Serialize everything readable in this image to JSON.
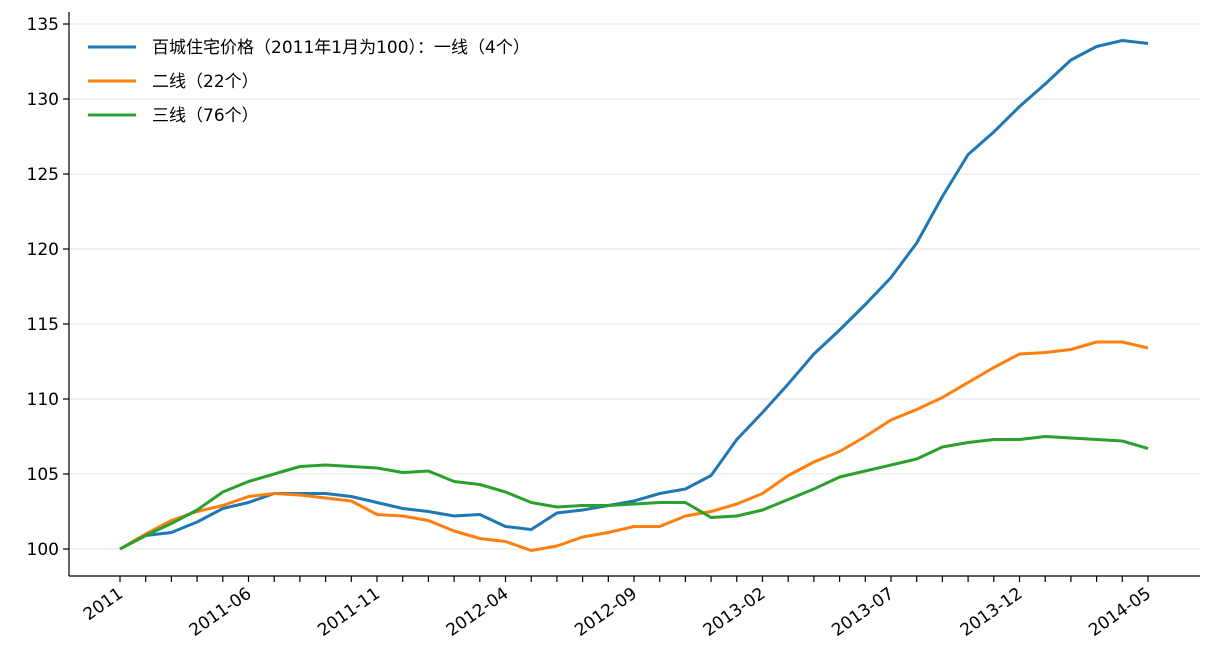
{
  "chart_data": {
    "type": "line",
    "categories": [
      "2011",
      null,
      null,
      null,
      null,
      "2011-06",
      null,
      null,
      null,
      null,
      "2011-11",
      null,
      null,
      null,
      null,
      "2012-04",
      null,
      null,
      null,
      null,
      "2012-09",
      null,
      null,
      null,
      null,
      "2013-02",
      null,
      null,
      null,
      null,
      "2013-07",
      null,
      null,
      null,
      null,
      "2013-12",
      null,
      null,
      null,
      null,
      "2014-05"
    ],
    "series": [
      {
        "name": "百城住宅价格（2011年1月为100）：一线（4个）",
        "color": "#1f77b4",
        "values": [
          100,
          100.9,
          101.1,
          101.8,
          102.7,
          103.1,
          103.7,
          103.7,
          103.7,
          103.5,
          103.1,
          102.7,
          102.5,
          102.2,
          102.3,
          101.5,
          101.3,
          102.4,
          102.6,
          102.9,
          103.2,
          103.7,
          104,
          104.9,
          107.3,
          109.1,
          111,
          113,
          114.6,
          116.3,
          118.1,
          120.4,
          123.5,
          126.3,
          127.8,
          129.5,
          131,
          132.6,
          133.5,
          133.9,
          133.7
        ]
      },
      {
        "name": "二线（22个）",
        "color": "#ff7f0e",
        "values": [
          100,
          101,
          101.9,
          102.5,
          102.9,
          103.5,
          103.7,
          103.6,
          103.4,
          103.2,
          102.3,
          102.2,
          101.9,
          101.2,
          100.7,
          100.5,
          99.9,
          100.2,
          100.8,
          101.1,
          101.5,
          101.5,
          102.2,
          102.5,
          103,
          103.7,
          104.9,
          105.8,
          106.5,
          107.5,
          108.6,
          109.3,
          110.1,
          111.1,
          112.1,
          113,
          113.1,
          113.3,
          113.8,
          113.8,
          113.4
        ]
      },
      {
        "name": "三线（76个）",
        "color": "#2ca02c",
        "values": [
          100,
          100.9,
          101.7,
          102.6,
          103.8,
          104.5,
          105,
          105.5,
          105.6,
          105.5,
          105.4,
          105.1,
          105.2,
          104.5,
          104.3,
          103.8,
          103.1,
          102.8,
          102.9,
          102.9,
          103,
          103.1,
          103.1,
          102.1,
          102.2,
          102.6,
          103.3,
          104,
          104.8,
          105.2,
          105.6,
          106,
          106.8,
          107.1,
          107.3,
          107.3,
          107.5,
          107.4,
          107.3,
          107.2,
          106.7
        ]
      }
    ],
    "ylim": [
      98.2,
      135.8
    ],
    "yticks": [
      100,
      105,
      110,
      115,
      120,
      125,
      130,
      135
    ],
    "grid": true,
    "legend": "upper left"
  }
}
